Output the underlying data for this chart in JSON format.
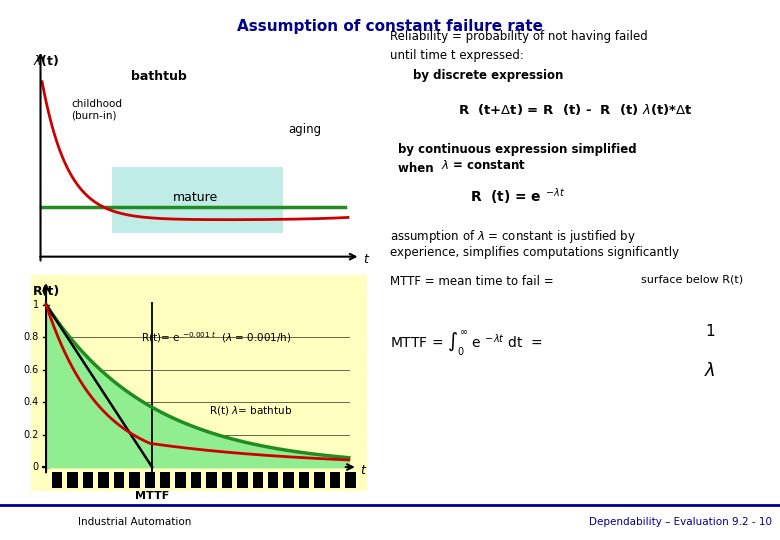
{
  "title": "Assumption of constant failure rate",
  "title_color": "#00008B",
  "bg_color": "#FFFFFF",
  "footer_text_left": "Industrial Automation",
  "footer_text_right": "Dependability – Evaluation 9.2 - 10",
  "footer_line_color": "#00008B",
  "footer_bg_color": "#CC0000",
  "upper_plot": {
    "mature_box_color": "#B0E8E0",
    "mature_line_color": "#228B22",
    "bathtub_curve_color": "#CC0000"
  },
  "lower_plot": {
    "fill_green": "#90EE90",
    "fill_yellow": "#FFFFC0",
    "exponential_line_color": "#228B22",
    "bathtub_R_color": "#CC0000",
    "straight_line_color": "#000000"
  },
  "right_text": {
    "discrete_box_color": "#FFFF99",
    "continuous_box_color": "#FFFF99",
    "lambda_highlight_color": "#AAFFFF",
    "mttf_box_color": "#66CC66"
  }
}
